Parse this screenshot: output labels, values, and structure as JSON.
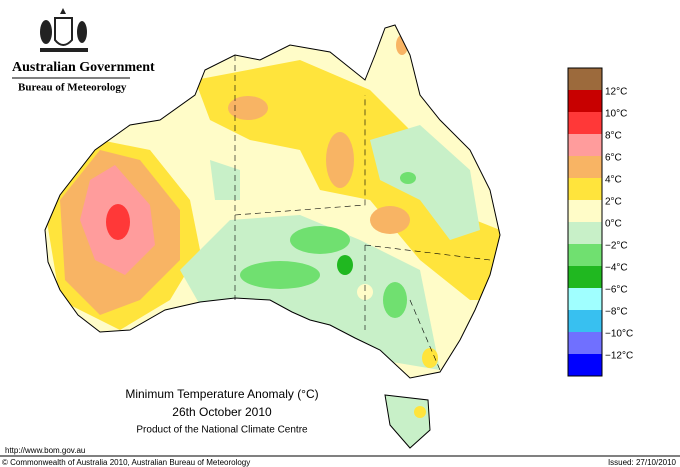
{
  "header": {
    "org": "Australian Government",
    "agency": "Bureau of Meteorology"
  },
  "legend": {
    "labels": [
      "12°C",
      "10°C",
      "8°C",
      "6°C",
      "4°C",
      "2°C",
      "0°C",
      "−2°C",
      "−4°C",
      "−6°C",
      "−8°C",
      "−10°C",
      "−12°C"
    ],
    "colors": [
      "#9c6a3c",
      "#c80000",
      "#ff3838",
      "#ff9c9c",
      "#f8b464",
      "#ffe43c",
      "#fffcc8",
      "#c8f0c8",
      "#70e070",
      "#20b820",
      "#a0ffff",
      "#38c0f0",
      "#7070ff",
      "#0000ff"
    ]
  },
  "title": {
    "line1": "Minimum Temperature Anomaly (°C)",
    "line2": "26th October 2010",
    "line3": "Product of the National Climate Centre"
  },
  "footer": {
    "url": "http://www.bom.gov.au",
    "copyright": "© Commonwealth of Australia 2010, Australian Bureau of Meteorology",
    "issued": "Issued: 27/10/2010"
  }
}
